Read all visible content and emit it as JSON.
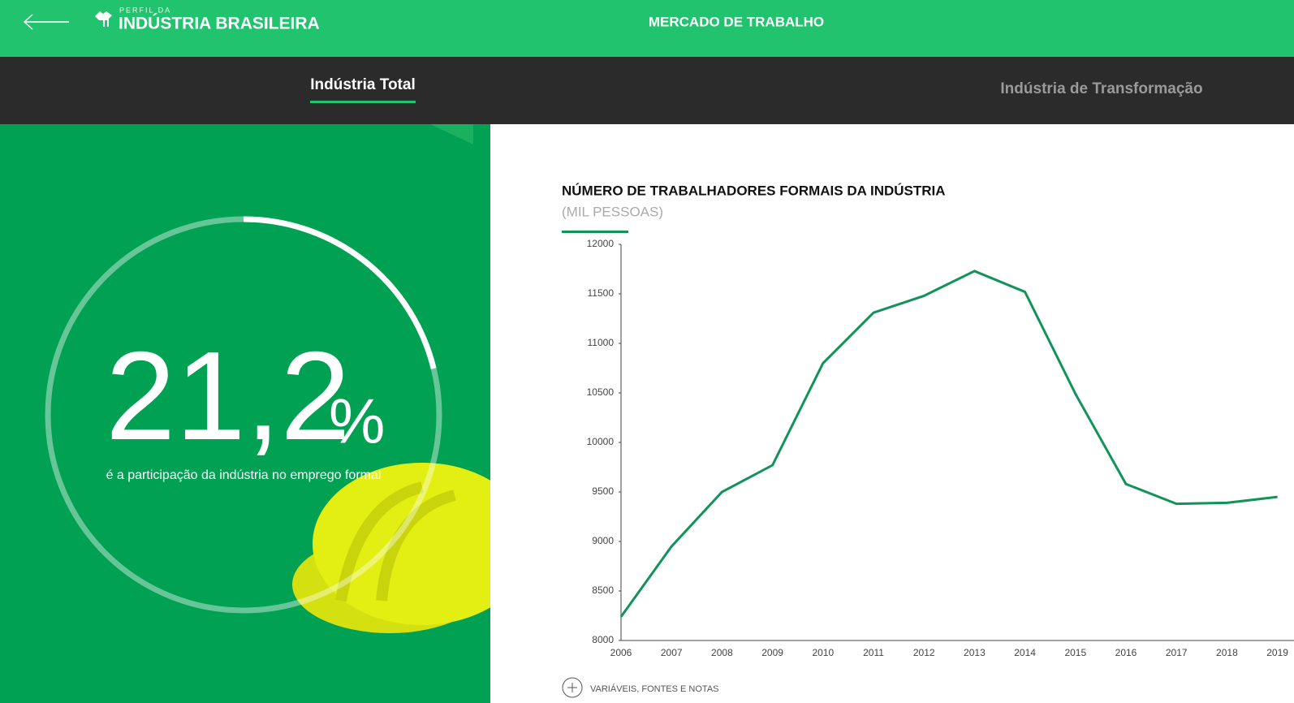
{
  "header": {
    "logo_top": "PERFIL DA",
    "logo": "INDÚSTRIA BRASILEIRA",
    "title": "MERCADO DE TRABALHO"
  },
  "tabs": [
    {
      "label": "Indústria Total",
      "active": true
    },
    {
      "label": "Indústria de Transformação",
      "active": false
    }
  ],
  "highlight": {
    "value": 21.2,
    "label": "21,2",
    "unit": "%",
    "caption": "é a participação da indústria no emprego formal"
  },
  "chart_data": {
    "type": "line",
    "title": "NÚMERO DE TRABALHADORES FORMAIS DA INDÚSTRIA",
    "subtitle": "(MIL PESSOAS)",
    "categories": [
      "2006",
      "2007",
      "2008",
      "2009",
      "2010",
      "2011",
      "2012",
      "2013",
      "2014",
      "2015",
      "2016",
      "2017",
      "2018",
      "2019"
    ],
    "values": [
      8240,
      8950,
      9500,
      9770,
      10800,
      11310,
      11480,
      11730,
      11520,
      10490,
      9580,
      9380,
      9390,
      9450
    ],
    "color": "#12935a",
    "ylim": [
      8000,
      12000
    ],
    "yticks": [
      8000,
      8500,
      9000,
      9500,
      10000,
      10500,
      11000,
      11500,
      12000
    ]
  },
  "footer_link": "VARIÁVEIS, FONTES E NOTAS"
}
